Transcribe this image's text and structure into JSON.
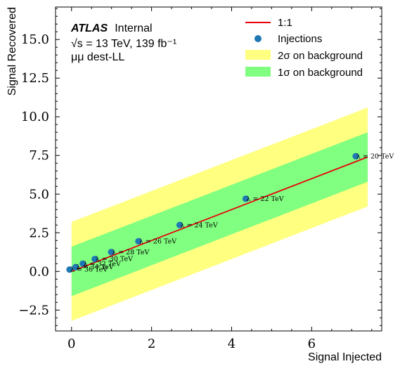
{
  "chart_data": {
    "type": "scatter",
    "xlabel": "Signal Injected",
    "ylabel": "Signal Recovered",
    "xlim": [
      -0.4,
      7.75
    ],
    "ylim": [
      -3.85,
      17.1
    ],
    "xticks": [
      0,
      2,
      4,
      6
    ],
    "xtick_labels": [
      "0",
      "2",
      "4",
      "6"
    ],
    "yticks": [
      -2.5,
      0.0,
      2.5,
      5.0,
      7.5,
      10.0,
      12.5,
      15.0
    ],
    "ytick_labels": [
      "−2.5",
      "0.0",
      "2.5",
      "5.0",
      "7.5",
      "10.0",
      "12.5",
      "15.0"
    ],
    "reference_line": {
      "name": "1:1",
      "color": "#e8000b",
      "x": [
        0.0,
        7.4
      ],
      "y": [
        0.0,
        7.4
      ]
    },
    "bands": [
      {
        "name": "2σ on background",
        "color": "#ffff80",
        "x": [
          0.0,
          7.4
        ],
        "low": [
          -3.2,
          4.2
        ],
        "high": [
          3.2,
          10.6
        ]
      },
      {
        "name": "1σ on background",
        "color": "#80ff80",
        "x": [
          0.0,
          7.4
        ],
        "low": [
          -1.6,
          5.8
        ],
        "high": [
          1.6,
          9.0
        ]
      }
    ],
    "series": [
      {
        "name": "Injections",
        "color": "#1f77b4",
        "points": [
          {
            "x": -0.05,
            "y": 0.12,
            "label": "λ = 36 TeV"
          },
          {
            "x": 0.1,
            "y": 0.28,
            "label": "λ = 34 TeV"
          },
          {
            "x": 0.28,
            "y": 0.5,
            "label": "λ = 32 TeV"
          },
          {
            "x": 0.58,
            "y": 0.8,
            "label": "λ = 30 TeV"
          },
          {
            "x": 0.99,
            "y": 1.25,
            "label": "λ = 28 TeV"
          },
          {
            "x": 1.67,
            "y": 1.95,
            "label": "λ = 26 TeV"
          },
          {
            "x": 2.7,
            "y": 3.0,
            "label": "λ = 24 TeV"
          },
          {
            "x": 4.35,
            "y": 4.7,
            "label": "λ = 22 TeV"
          },
          {
            "x": 7.1,
            "y": 7.45,
            "label": "λ = 20 TeV"
          }
        ]
      }
    ],
    "legend": {
      "position": "top-right",
      "entries": [
        "1:1",
        "Injections",
        "2σ on background",
        "1σ on background"
      ]
    }
  },
  "atlas": {
    "label": "ATLAS",
    "status": "Internal",
    "energy_line": "√s = 13 TeV, 139 fb⁻¹",
    "channel": "μμ dest-LL"
  }
}
